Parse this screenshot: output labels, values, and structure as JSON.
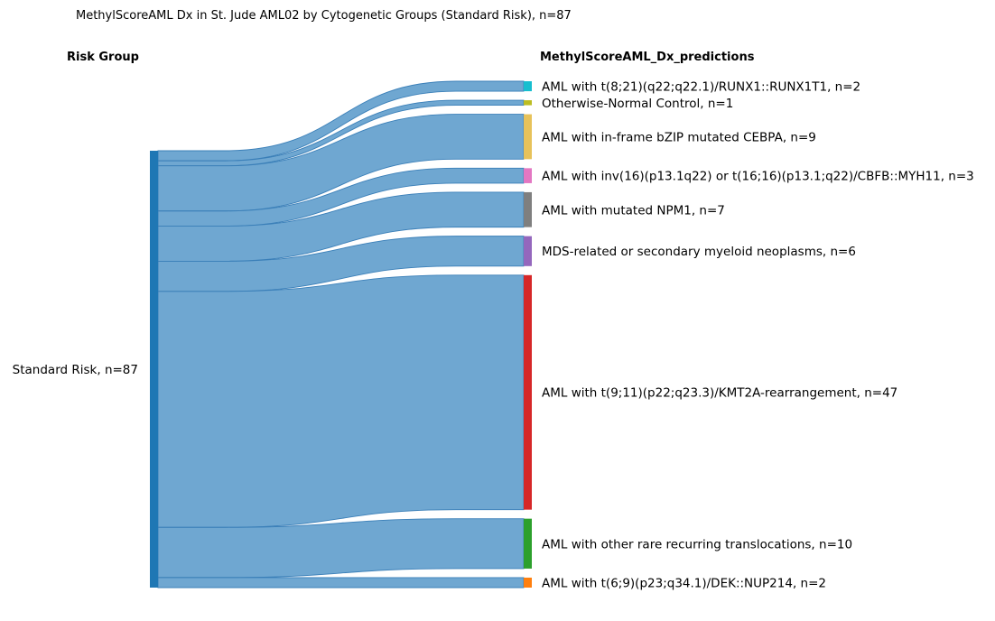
{
  "chart_data": {
    "type": "sankey",
    "title": "MethylScoreAML Dx in St. Jude AML02 by Cytogenetic Groups (Standard Risk), n=87",
    "left_header": "Risk Group",
    "right_header": "MethylScoreAML_Dx_predictions",
    "source": {
      "label": "Standard Risk, n=87",
      "total": 87,
      "color": "#1f77b4"
    },
    "flow_color": "#5b9bcb",
    "targets": [
      {
        "label": "AML with t(8;21)(q22;q22.1)/RUNX1::RUNX1T1, n=2",
        "value": 2,
        "color": "#17becf"
      },
      {
        "label": "Otherwise-Normal Control, n=1",
        "value": 1,
        "color": "#bcbd22"
      },
      {
        "label": "AML with in-frame bZIP mutated CEBPA, n=9",
        "value": 9,
        "color": "#e7c25a"
      },
      {
        "label": "AML with inv(16)(p13.1q22) or t(16;16)(p13.1;q22)/CBFB::MYH11, n=3",
        "value": 3,
        "color": "#e377c2"
      },
      {
        "label": "AML with mutated NPM1, n=7",
        "value": 7,
        "color": "#7f7f7f"
      },
      {
        "label": "MDS-related or secondary myeloid neoplasms, n=6",
        "value": 6,
        "color": "#9467bd"
      },
      {
        "label": "AML with t(9;11)(p22;q23.3)/KMT2A-rearrangement, n=47",
        "value": 47,
        "color": "#d62728"
      },
      {
        "label": "AML with other rare recurring translocations, n=10",
        "value": 10,
        "color": "#2ca02c"
      },
      {
        "label": "AML with t(6;9)(p23;q34.1)/DEK::NUP214, n=2",
        "value": 2,
        "color": "#ff7f0e"
      }
    ]
  }
}
